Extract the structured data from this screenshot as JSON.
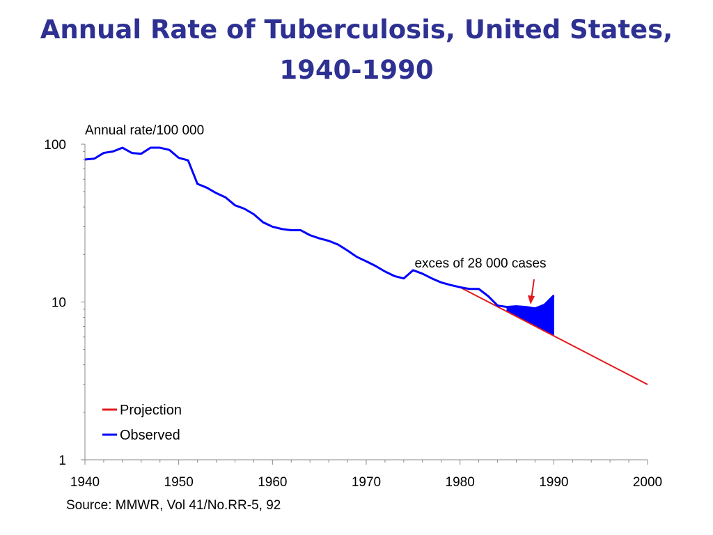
{
  "slide": {
    "title_line1": "Annual Rate of Tuberculosis, United States,",
    "title_line2": "1940-1990",
    "source": "Source: MMWR, Vol 41/No.RR-5, 92"
  },
  "colors": {
    "title": "#2e3192",
    "observed": "#0000ff",
    "projection": "#e31a1c",
    "axis": "#888888"
  },
  "chart_data": {
    "type": "line",
    "title": "Annual Rate of Tuberculosis, United States, 1940-1990",
    "ylabel": "Annual rate/100 000",
    "xlabel": "",
    "yscale": "log",
    "ylim": [
      1,
      100
    ],
    "xlim": [
      1940,
      2000
    ],
    "xticks": [
      "1940",
      "1950",
      "1960",
      "1970",
      "1980",
      "1990",
      "2000"
    ],
    "yticks": [
      "1",
      "10",
      "100"
    ],
    "legend": {
      "placement": "bottom-left",
      "entries": [
        "Projection",
        "Observed"
      ]
    },
    "grid": false,
    "annotation": {
      "text": "exces of 28 000 cases",
      "x": 1987.5,
      "y": 9.4
    },
    "shaded_region": {
      "label": "exces of 28 000 cases",
      "x_range": [
        1985,
        1990
      ]
    },
    "series": [
      {
        "name": "Observed",
        "x": [
          1940,
          1941,
          1942,
          1943,
          1944,
          1945,
          1946,
          1947,
          1948,
          1949,
          1950,
          1951,
          1952,
          1953,
          1954,
          1955,
          1956,
          1957,
          1958,
          1959,
          1960,
          1961,
          1962,
          1963,
          1964,
          1965,
          1966,
          1967,
          1968,
          1969,
          1970,
          1971,
          1972,
          1973,
          1974,
          1975,
          1976,
          1977,
          1978,
          1979,
          1980,
          1981,
          1982,
          1983,
          1984,
          1985,
          1986,
          1987,
          1988,
          1989,
          1990
        ],
        "y": [
          80,
          81,
          88,
          90,
          95,
          88,
          87,
          95,
          95,
          92,
          82,
          79,
          56,
          53,
          49,
          46,
          41,
          39,
          36,
          32,
          30,
          29,
          28.5,
          28.5,
          26.5,
          25.3,
          24.4,
          23.1,
          21.2,
          19.3,
          18.1,
          16.9,
          15.6,
          14.6,
          14.1,
          15.9,
          15.1,
          14.1,
          13.3,
          12.8,
          12.4,
          12.1,
          12.1,
          10.9,
          9.5,
          9.3,
          9.4,
          9.3,
          9.1,
          9.6,
          11.0
        ]
      },
      {
        "name": "Projection",
        "x": [
          1980,
          2000
        ],
        "y": [
          12.4,
          3.0
        ]
      }
    ]
  }
}
